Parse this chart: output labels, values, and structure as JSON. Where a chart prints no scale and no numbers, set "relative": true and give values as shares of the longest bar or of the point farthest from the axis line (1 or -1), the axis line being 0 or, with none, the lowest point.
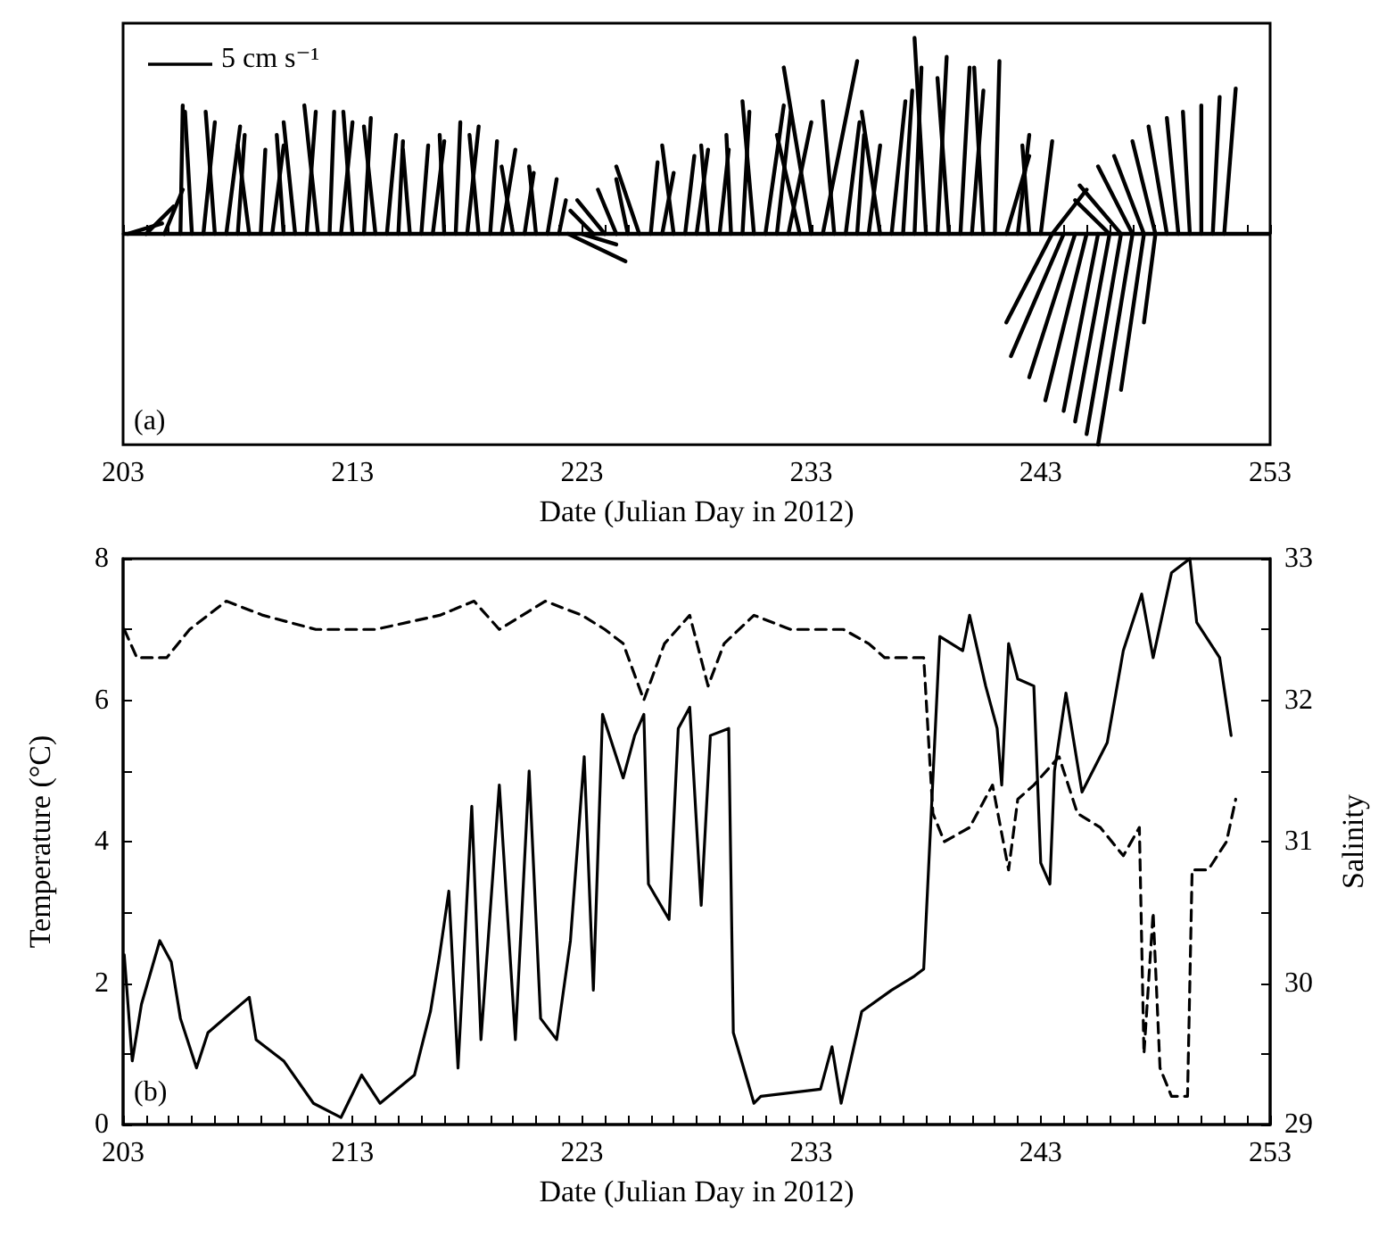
{
  "chart_data": [
    {
      "type": "line",
      "relative": true,
      "tick_labels": "x",
      "marker": "none",
      "xlabel": "Date (Julian Day in 2012)",
      "annotations": [
        "5 cm s⁻¹",
        "(a)"
      ],
      "xlim": [
        203,
        253
      ],
      "xticks": [
        203,
        {
          "value": 204,
          "label": null
        },
        {
          "value": 205,
          "label": null
        },
        {
          "value": 206,
          "label": null
        },
        {
          "value": 207,
          "label": null
        },
        {
          "value": 208,
          "label": null
        },
        {
          "value": 209,
          "label": null
        },
        {
          "value": 210,
          "label": null
        },
        {
          "value": 211,
          "label": null
        },
        {
          "value": 212,
          "label": null
        },
        213,
        {
          "value": 214,
          "label": null
        },
        {
          "value": 215,
          "label": null
        },
        {
          "value": 216,
          "label": null
        },
        {
          "value": 217,
          "label": null
        },
        {
          "value": 218,
          "label": null
        },
        {
          "value": 219,
          "label": null
        },
        {
          "value": 220,
          "label": null
        },
        {
          "value": 221,
          "label": null
        },
        {
          "value": 222,
          "label": null
        },
        223,
        {
          "value": 224,
          "label": null
        },
        {
          "value": 225,
          "label": null
        },
        {
          "value": 226,
          "label": null
        },
        {
          "value": 227,
          "label": null
        },
        {
          "value": 228,
          "label": null
        },
        {
          "value": 229,
          "label": null
        },
        {
          "value": 230,
          "label": null
        },
        {
          "value": 231,
          "label": null
        },
        {
          "value": 232,
          "label": null
        },
        233,
        {
          "value": 234,
          "label": null
        },
        {
          "value": 235,
          "label": null
        },
        {
          "value": 236,
          "label": null
        },
        {
          "value": 237,
          "label": null
        },
        {
          "value": 238,
          "label": null
        },
        {
          "value": 239,
          "label": null
        },
        {
          "value": 240,
          "label": null
        },
        {
          "value": 241,
          "label": null
        },
        {
          "value": 242,
          "label": null
        },
        243,
        {
          "value": 244,
          "label": null
        },
        {
          "value": 245,
          "label": null
        },
        {
          "value": 246,
          "label": null
        },
        {
          "value": 247,
          "label": null
        },
        {
          "value": 248,
          "label": null
        },
        {
          "value": 249,
          "label": null
        },
        {
          "value": 250,
          "label": null
        },
        {
          "value": 251,
          "label": null
        },
        {
          "value": 252,
          "label": null
        },
        253
      ],
      "ref_lines": [
        {
          "axis": "y",
          "value": 0,
          "color": "#000000"
        }
      ],
      "series": [
        {
          "color": "#000000",
          "x": [
            203.2,
            204.7
          ],
          "values": [
            0,
            0.05
          ]
        },
        {
          "color": "#000000",
          "x": [
            204,
            205.2
          ],
          "values": [
            0,
            0.13
          ]
        },
        {
          "color": "#000000",
          "x": [
            204.8,
            205.6
          ],
          "values": [
            0,
            0.21
          ]
        },
        {
          "color": "#000000",
          "x": [
            205.5,
            205.6
          ],
          "values": [
            0,
            0.61
          ]
        },
        {
          "color": "#000000",
          "x": [
            206,
            205.7
          ],
          "values": [
            0,
            0.58
          ]
        },
        {
          "color": "#000000",
          "x": [
            206.5,
            207
          ],
          "values": [
            0,
            0.53
          ]
        },
        {
          "color": "#000000",
          "x": [
            207,
            206.6
          ],
          "values": [
            0,
            0.58
          ]
        },
        {
          "color": "#000000",
          "x": [
            207.5,
            208.1
          ],
          "values": [
            0,
            0.51
          ]
        },
        {
          "color": "#000000",
          "x": [
            208,
            208.3
          ],
          "values": [
            0,
            0.47
          ]
        },
        {
          "color": "#000000",
          "x": [
            208.5,
            208
          ],
          "values": [
            0,
            0.42
          ]
        },
        {
          "color": "#000000",
          "x": [
            209,
            209.2
          ],
          "values": [
            0,
            0.4
          ]
        },
        {
          "color": "#000000",
          "x": [
            209.5,
            210
          ],
          "values": [
            0,
            0.42
          ]
        },
        {
          "color": "#000000",
          "x": [
            210,
            209.7
          ],
          "values": [
            0,
            0.47
          ]
        },
        {
          "color": "#000000",
          "x": [
            210.5,
            210
          ],
          "values": [
            0,
            0.53
          ]
        },
        {
          "color": "#000000",
          "x": [
            211,
            211.4
          ],
          "values": [
            0,
            0.58
          ]
        },
        {
          "color": "#000000",
          "x": [
            211.5,
            210.9
          ],
          "values": [
            0,
            0.61
          ]
        },
        {
          "color": "#000000",
          "x": [
            212,
            212.2
          ],
          "values": [
            0,
            0.58
          ]
        },
        {
          "color": "#000000",
          "x": [
            212.5,
            213
          ],
          "values": [
            0,
            0.53
          ]
        },
        {
          "color": "#000000",
          "x": [
            213,
            212.6
          ],
          "values": [
            0,
            0.58
          ]
        },
        {
          "color": "#000000",
          "x": [
            213.5,
            213.8
          ],
          "values": [
            0,
            0.55
          ]
        },
        {
          "color": "#000000",
          "x": [
            214,
            213.5
          ],
          "values": [
            0,
            0.51
          ]
        },
        {
          "color": "#000000",
          "x": [
            214.5,
            214.9
          ],
          "values": [
            0,
            0.47
          ]
        },
        {
          "color": "#000000",
          "x": [
            215,
            215.2
          ],
          "values": [
            0,
            0.44
          ]
        },
        {
          "color": "#000000",
          "x": [
            215.5,
            215.2
          ],
          "values": [
            0,
            0.4
          ]
        },
        {
          "color": "#000000",
          "x": [
            216,
            216.3
          ],
          "values": [
            0,
            0.42
          ]
        },
        {
          "color": "#000000",
          "x": [
            216.5,
            217
          ],
          "values": [
            0,
            0.44
          ]
        },
        {
          "color": "#000000",
          "x": [
            217,
            216.8
          ],
          "values": [
            0,
            0.47
          ]
        },
        {
          "color": "#000000",
          "x": [
            217.5,
            217.7
          ],
          "values": [
            0,
            0.53
          ]
        },
        {
          "color": "#000000",
          "x": [
            218,
            218.5
          ],
          "values": [
            0,
            0.51
          ]
        },
        {
          "color": "#000000",
          "x": [
            218.5,
            218.1
          ],
          "values": [
            0,
            0.47
          ]
        },
        {
          "color": "#000000",
          "x": [
            219,
            219.3
          ],
          "values": [
            0,
            0.44
          ]
        },
        {
          "color": "#000000",
          "x": [
            219.5,
            220.1
          ],
          "values": [
            0,
            0.4
          ]
        },
        {
          "color": "#000000",
          "x": [
            220,
            219.5
          ],
          "values": [
            0,
            0.32
          ]
        },
        {
          "color": "#000000",
          "x": [
            220.5,
            220.9
          ],
          "values": [
            0,
            0.29
          ]
        },
        {
          "color": "#000000",
          "x": [
            221,
            220.7
          ],
          "values": [
            0,
            0.32
          ]
        },
        {
          "color": "#000000",
          "x": [
            221.5,
            221.9
          ],
          "values": [
            0,
            0.26
          ]
        },
        {
          "color": "#000000",
          "x": [
            222,
            222.3
          ],
          "values": [
            0,
            0.16
          ]
        },
        {
          "color": "#000000",
          "x": [
            222.4,
            224.9
          ],
          "values": [
            0,
            -0.13
          ]
        },
        {
          "color": "#000000",
          "x": [
            223,
            224.5
          ],
          "values": [
            0,
            -0.05
          ]
        },
        {
          "color": "#000000",
          "x": [
            223.5,
            222.5
          ],
          "values": [
            0,
            0.11
          ]
        },
        {
          "color": "#000000",
          "x": [
            224,
            222.8
          ],
          "values": [
            0,
            0.16
          ]
        },
        {
          "color": "#000000",
          "x": [
            224.5,
            223.7
          ],
          "values": [
            0,
            0.21
          ]
        },
        {
          "color": "#000000",
          "x": [
            225,
            224.5
          ],
          "values": [
            0,
            0.26
          ]
        },
        {
          "color": "#000000",
          "x": [
            225.5,
            224.5
          ],
          "values": [
            0,
            0.32
          ]
        },
        {
          "color": "#000000",
          "x": [
            226,
            226.3
          ],
          "values": [
            0,
            0.34
          ]
        },
        {
          "color": "#000000",
          "x": [
            226.5,
            227
          ],
          "values": [
            0,
            0.29
          ]
        },
        {
          "color": "#000000",
          "x": [
            227,
            226.5
          ],
          "values": [
            0,
            0.42
          ]
        },
        {
          "color": "#000000",
          "x": [
            227.5,
            227.9
          ],
          "values": [
            0,
            0.37
          ]
        },
        {
          "color": "#000000",
          "x": [
            228,
            228.5
          ],
          "values": [
            0,
            0.4
          ]
        },
        {
          "color": "#000000",
          "x": [
            228.5,
            228.2
          ],
          "values": [
            0,
            0.42
          ]
        },
        {
          "color": "#000000",
          "x": [
            229,
            229.4
          ],
          "values": [
            0,
            0.4
          ]
        },
        {
          "color": "#000000",
          "x": [
            229.5,
            229.3
          ],
          "values": [
            0,
            0.47
          ]
        },
        {
          "color": "#000000",
          "x": [
            230,
            230.3
          ],
          "values": [
            0,
            0.58
          ]
        },
        {
          "color": "#000000",
          "x": [
            230.5,
            230
          ],
          "values": [
            0,
            0.63
          ]
        },
        {
          "color": "#000000",
          "x": [
            231,
            231.8
          ],
          "values": [
            0,
            0.61
          ]
        },
        {
          "color": "#000000",
          "x": [
            231.5,
            232.1
          ],
          "values": [
            0,
            0.58
          ]
        },
        {
          "color": "#000000",
          "x": [
            232,
            233
          ],
          "values": [
            0,
            0.53
          ]
        },
        {
          "color": "#000000",
          "x": [
            232.5,
            231.5
          ],
          "values": [
            0,
            0.47
          ]
        },
        {
          "color": "#000000",
          "x": [
            233,
            231.8
          ],
          "values": [
            0,
            0.79
          ]
        },
        {
          "color": "#000000",
          "x": [
            233.5,
            235
          ],
          "values": [
            0,
            0.82
          ]
        },
        {
          "color": "#000000",
          "x": [
            234,
            233.5
          ],
          "values": [
            0,
            0.63
          ]
        },
        {
          "color": "#000000",
          "x": [
            234.5,
            235.1
          ],
          "values": [
            0,
            0.53
          ]
        },
        {
          "color": "#000000",
          "x": [
            235,
            235.3
          ],
          "values": [
            0,
            0.47
          ]
        },
        {
          "color": "#000000",
          "x": [
            235.5,
            236
          ],
          "values": [
            0,
            0.42
          ]
        },
        {
          "color": "#000000",
          "x": [
            236,
            235.2
          ],
          "values": [
            0,
            0.58
          ]
        },
        {
          "color": "#000000",
          "x": [
            236.5,
            237.1
          ],
          "values": [
            0,
            0.63
          ]
        },
        {
          "color": "#000000",
          "x": [
            237,
            237.4
          ],
          "values": [
            0,
            0.68
          ]
        },
        {
          "color": "#000000",
          "x": [
            237.5,
            237.8
          ],
          "values": [
            0,
            0.79
          ]
        },
        {
          "color": "#000000",
          "x": [
            238,
            237.5
          ],
          "values": [
            0,
            0.93
          ]
        },
        {
          "color": "#000000",
          "x": [
            238.5,
            238.9
          ],
          "values": [
            0,
            0.84
          ]
        },
        {
          "color": "#000000",
          "x": [
            239,
            238.5
          ],
          "values": [
            0,
            0.74
          ]
        },
        {
          "color": "#000000",
          "x": [
            239.5,
            239.9
          ],
          "values": [
            0,
            0.79
          ]
        },
        {
          "color": "#000000",
          "x": [
            240,
            240.5
          ],
          "values": [
            0,
            0.68
          ]
        },
        {
          "color": "#000000",
          "x": [
            240.5,
            240.1
          ],
          "values": [
            0,
            0.79
          ]
        },
        {
          "color": "#000000",
          "x": [
            241,
            241.2
          ],
          "values": [
            0,
            0.82
          ]
        },
        {
          "color": "#000000",
          "x": [
            241.5,
            242.5
          ],
          "values": [
            0,
            0.37
          ]
        },
        {
          "color": "#000000",
          "x": [
            242,
            242.5
          ],
          "values": [
            0,
            0.47
          ]
        },
        {
          "color": "#000000",
          "x": [
            242.5,
            242.2
          ],
          "values": [
            0,
            0.42
          ]
        },
        {
          "color": "#000000",
          "x": [
            243,
            243.5
          ],
          "values": [
            0,
            0.44
          ]
        },
        {
          "color": "#000000",
          "x": [
            243.5,
            245
          ],
          "values": [
            0,
            0.21
          ]
        },
        {
          "color": "#000000",
          "x": [
            243.5,
            241.5
          ],
          "values": [
            0,
            -0.42
          ]
        },
        {
          "color": "#000000",
          "x": [
            244,
            241.7
          ],
          "values": [
            0,
            -0.58
          ]
        },
        {
          "color": "#000000",
          "x": [
            244.5,
            242.5
          ],
          "values": [
            0,
            -0.68
          ]
        },
        {
          "color": "#000000",
          "x": [
            245,
            243.2
          ],
          "values": [
            0,
            -0.79
          ]
        },
        {
          "color": "#000000",
          "x": [
            245.5,
            244
          ],
          "values": [
            0,
            -0.84
          ]
        },
        {
          "color": "#000000",
          "x": [
            246,
            244.5
          ],
          "values": [
            0,
            -0.89
          ]
        },
        {
          "color": "#000000",
          "x": [
            246.5,
            245
          ],
          "values": [
            0,
            -0.95
          ]
        },
        {
          "color": "#000000",
          "x": [
            247,
            245.5
          ],
          "values": [
            0,
            -1
          ]
        },
        {
          "color": "#000000",
          "x": [
            247.5,
            246.5
          ],
          "values": [
            0,
            -0.74
          ]
        },
        {
          "color": "#000000",
          "x": [
            248,
            247.5
          ],
          "values": [
            0,
            -0.42
          ]
        },
        {
          "color": "#000000",
          "x": [
            246,
            244.5
          ],
          "values": [
            0,
            0.16
          ]
        },
        {
          "color": "#000000",
          "x": [
            246.5,
            244.7
          ],
          "values": [
            0,
            0.23
          ]
        },
        {
          "color": "#000000",
          "x": [
            247,
            245.5
          ],
          "values": [
            0,
            0.32
          ]
        },
        {
          "color": "#000000",
          "x": [
            247.5,
            246.2
          ],
          "values": [
            0,
            0.37
          ]
        },
        {
          "color": "#000000",
          "x": [
            248,
            247
          ],
          "values": [
            0,
            0.44
          ]
        },
        {
          "color": "#000000",
          "x": [
            248.5,
            247.7
          ],
          "values": [
            0,
            0.51
          ]
        },
        {
          "color": "#000000",
          "x": [
            249,
            248.5
          ],
          "values": [
            0,
            0.55
          ]
        },
        {
          "color": "#000000",
          "x": [
            249.5,
            249.2
          ],
          "values": [
            0,
            0.58
          ]
        },
        {
          "color": "#000000",
          "x": [
            250,
            250
          ],
          "values": [
            0,
            0.61
          ]
        },
        {
          "color": "#000000",
          "x": [
            250.5,
            250.8
          ],
          "values": [
            0,
            0.65
          ]
        },
        {
          "color": "#000000",
          "x": [
            251,
            251.5
          ],
          "values": [
            0,
            0.69
          ]
        }
      ]
    },
    {
      "type": "line",
      "xlabel": "Date (Julian Day in 2012)",
      "ylabel": "Temperature (°C)",
      "y2label": "Salinity",
      "annotations": [
        "(b)"
      ],
      "marker": "none",
      "xlim": [
        203,
        253
      ],
      "ylim": [
        0,
        8
      ],
      "y2lim": [
        29,
        33
      ],
      "xticks": [
        203,
        {
          "value": 204,
          "label": null
        },
        {
          "value": 205,
          "label": null
        },
        {
          "value": 206,
          "label": null
        },
        {
          "value": 207,
          "label": null
        },
        {
          "value": 208,
          "label": null
        },
        {
          "value": 209,
          "label": null
        },
        {
          "value": 210,
          "label": null
        },
        {
          "value": 211,
          "label": null
        },
        {
          "value": 212,
          "label": null
        },
        213,
        {
          "value": 214,
          "label": null
        },
        {
          "value": 215,
          "label": null
        },
        {
          "value": 216,
          "label": null
        },
        {
          "value": 217,
          "label": null
        },
        {
          "value": 218,
          "label": null
        },
        {
          "value": 219,
          "label": null
        },
        {
          "value": 220,
          "label": null
        },
        {
          "value": 221,
          "label": null
        },
        {
          "value": 222,
          "label": null
        },
        223,
        {
          "value": 224,
          "label": null
        },
        {
          "value": 225,
          "label": null
        },
        {
          "value": 226,
          "label": null
        },
        {
          "value": 227,
          "label": null
        },
        {
          "value": 228,
          "label": null
        },
        {
          "value": 229,
          "label": null
        },
        {
          "value": 230,
          "label": null
        },
        {
          "value": 231,
          "label": null
        },
        {
          "value": 232,
          "label": null
        },
        233,
        {
          "value": 234,
          "label": null
        },
        {
          "value": 235,
          "label": null
        },
        {
          "value": 236,
          "label": null
        },
        {
          "value": 237,
          "label": null
        },
        {
          "value": 238,
          "label": null
        },
        {
          "value": 239,
          "label": null
        },
        {
          "value": 240,
          "label": null
        },
        {
          "value": 241,
          "label": null
        },
        {
          "value": 242,
          "label": null
        },
        243,
        {
          "value": 244,
          "label": null
        },
        {
          "value": 245,
          "label": null
        },
        {
          "value": 246,
          "label": null
        },
        {
          "value": 247,
          "label": null
        },
        {
          "value": 248,
          "label": null
        },
        {
          "value": 249,
          "label": null
        },
        {
          "value": 250,
          "label": null
        },
        {
          "value": 251,
          "label": null
        },
        {
          "value": 252,
          "label": null
        },
        253
      ],
      "yticks": [
        0,
        {
          "value": 1,
          "label": null
        },
        2,
        {
          "value": 3,
          "label": null
        },
        4,
        {
          "value": 5,
          "label": null
        },
        6,
        {
          "value": 7,
          "label": null
        },
        8
      ],
      "y2ticks": [
        29,
        {
          "value": 29.5,
          "label": null
        },
        30,
        {
          "value": 30.5,
          "label": null
        },
        31,
        {
          "value": 31.5,
          "label": null
        },
        32,
        {
          "value": 32.5,
          "label": null
        },
        33
      ],
      "series": [
        {
          "color": "#000000",
          "line_style": "solid",
          "x": [
            203.05,
            203.4,
            203.8,
            204.6,
            205.1,
            205.5,
            206.2,
            206.7,
            208.5,
            208.8,
            210.0,
            211.3,
            212.5,
            213.4,
            214.2,
            215.7,
            216.4,
            216.8,
            217.2,
            217.6,
            218.2,
            218.6,
            219.4,
            220.1,
            220.7,
            221.2,
            221.9,
            222.5,
            223.1,
            223.5,
            223.9,
            224.8,
            225.3,
            225.7,
            225.9,
            226.8,
            227.2,
            227.7,
            228.2,
            228.6,
            229.4,
            229.6,
            230.5,
            230.8,
            233.4,
            233.9,
            234.3,
            235.2,
            236.5,
            237.5,
            237.9,
            238.6,
            239.6,
            239.9,
            240.6,
            241.1,
            241.3,
            241.6,
            242.0,
            242.7,
            243.0,
            243.4,
            243.6,
            244.1,
            244.8,
            245.9,
            246.6,
            247.4,
            247.9,
            248.7,
            249.5,
            249.8,
            250.8,
            251.3
          ],
          "values": [
            2.4,
            0.9,
            1.7,
            2.6,
            2.3,
            1.5,
            0.8,
            1.3,
            1.8,
            1.2,
            0.9,
            0.3,
            0.1,
            0.7,
            0.3,
            0.7,
            1.6,
            2.4,
            3.3,
            0.8,
            4.5,
            1.2,
            4.8,
            1.2,
            5.0,
            1.5,
            1.2,
            2.6,
            5.2,
            1.9,
            5.8,
            4.9,
            5.5,
            5.8,
            3.4,
            2.9,
            5.6,
            5.9,
            3.1,
            5.5,
            5.6,
            1.3,
            0.3,
            0.4,
            0.5,
            1.1,
            0.3,
            1.6,
            1.9,
            2.1,
            2.2,
            6.9,
            6.7,
            7.2,
            6.2,
            5.6,
            4.8,
            6.8,
            6.3,
            6.2,
            3.7,
            3.4,
            5.0,
            6.1,
            4.7,
            5.4,
            6.7,
            7.5,
            6.6,
            7.8,
            8.0,
            7.1,
            6.6,
            5.5
          ]
        },
        {
          "color": "#000000",
          "line_style": "dashed",
          "axis": "y2",
          "x": [
            203.05,
            203.6,
            204.9,
            205.9,
            207.5,
            209.1,
            211.4,
            214.0,
            216.8,
            218.3,
            219.4,
            221.4,
            223.0,
            224.0,
            224.8,
            225.7,
            226.6,
            227.7,
            228.5,
            229.2,
            230.5,
            232.1,
            234.4,
            235.5,
            236.2,
            237.9,
            238.3,
            238.8,
            239.9,
            240.9,
            241.6,
            242.0,
            242.7,
            243.8,
            244.6,
            245.6,
            246.6,
            247.3,
            247.5,
            247.9,
            248.2,
            248.7,
            249.4,
            249.6,
            250.3,
            251.1,
            251.5
          ],
          "values": [
            32.5,
            32.3,
            32.3,
            32.5,
            32.7,
            32.6,
            32.5,
            32.5,
            32.6,
            32.7,
            32.5,
            32.7,
            32.6,
            32.5,
            32.4,
            32.0,
            32.4,
            32.6,
            32.1,
            32.4,
            32.6,
            32.5,
            32.5,
            32.4,
            32.3,
            32.3,
            31.2,
            31.0,
            31.1,
            31.4,
            30.8,
            31.3,
            31.4,
            31.6,
            31.2,
            31.1,
            30.9,
            31.1,
            29.5,
            30.5,
            29.4,
            29.2,
            29.2,
            30.8,
            30.8,
            31.0,
            31.3
          ]
        }
      ]
    }
  ]
}
